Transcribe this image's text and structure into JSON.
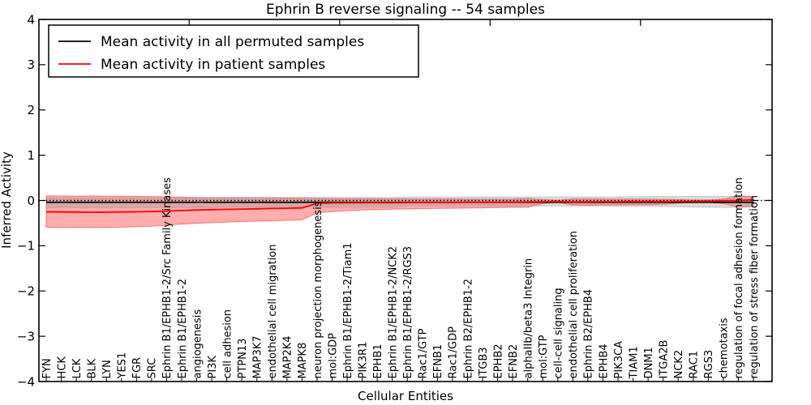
{
  "chart_data": {
    "type": "line",
    "title": "Ephrin B reverse signaling -- 54 samples",
    "xlabel": "Cellular Entities",
    "ylabel": "Inferred Activity",
    "ylim": [
      -4,
      4
    ],
    "ytick_values": [
      4,
      3,
      2,
      1,
      0,
      -1,
      -2,
      -3,
      -4
    ],
    "ytick_labels": [
      "4",
      "3",
      "2",
      "1",
      "0",
      "−1",
      "−2",
      "−3",
      "−4"
    ],
    "xtick_values": [
      10,
      20,
      30,
      40
    ],
    "grid": false,
    "legend_position": "upper left",
    "background": "#ffffff",
    "categories": [
      "FYN",
      "HCK",
      "LCK",
      "BLK",
      "LYN",
      "YES1",
      "FGR",
      "SRC",
      "Ephrin B1/EPHB1-2/Src Family Kinases",
      "Ephrin B1/EPHB1-2",
      "angiogenesis",
      "PI3K",
      "cell adhesion",
      "PTPN13",
      "MAP3K7",
      "endothelial cell migration",
      "MAP2K4",
      "MAPK8",
      "neuron projection morphogenesis",
      "mol:GDP",
      "Ephrin B1/EPHB1-2/Tiam1",
      "PIK3R1",
      "EPHB1",
      "Ephrin B1/EPHB1-2/NCK2",
      "Ephrin B1/EPHB1-2/RGS3",
      "Rac1/GTP",
      "EFNB1",
      "Rac1/GDP",
      "Ephrin B2/EPHB1-2",
      "ITGB3",
      "EPHB2",
      "EFNB2",
      "alphaIIb/beta3 Integrin",
      "mol:GTP",
      "cell-cell signaling",
      "endothelial cell proliferation",
      "Ephrin B2/EPHB4",
      "EPHB4",
      "PIK3CA",
      "TIAM1",
      "DNM1",
      "ITGA2B",
      "NCK2",
      "RAC1",
      "RGS3",
      "chemotaxis",
      "regulation of focal adhesion formation",
      "regulation of stress fiber formation"
    ],
    "series": [
      {
        "name": "Mean activity in all permuted samples",
        "color": "#000000",
        "value_constant": -0.04
      },
      {
        "name": "Mean activity in patient samples",
        "color": "#ff0000",
        "values": [
          -0.25,
          -0.255,
          -0.256,
          -0.26,
          -0.258,
          -0.254,
          -0.25,
          -0.245,
          -0.234,
          -0.222,
          -0.212,
          -0.203,
          -0.196,
          -0.19,
          -0.184,
          -0.178,
          -0.171,
          -0.164,
          -0.062,
          -0.056,
          -0.052,
          -0.05,
          -0.048,
          -0.05,
          -0.046,
          -0.043,
          -0.042,
          -0.044,
          -0.04,
          -0.037,
          -0.04,
          -0.036,
          -0.032,
          -0.028,
          -0.024,
          -0.032,
          -0.031,
          -0.027,
          -0.028,
          -0.024,
          -0.022,
          -0.024,
          -0.02,
          -0.018,
          -0.016,
          -0.008,
          0.0,
          0.015
        ]
      }
    ],
    "bands": [
      {
        "series": "patient",
        "color": "#ff0000",
        "opacity": 0.32,
        "upper": [
          0.1,
          0.1,
          0.096,
          0.1,
          0.097,
          0.093,
          0.09,
          0.088,
          0.08,
          0.073,
          0.068,
          0.065,
          0.062,
          0.06,
          0.058,
          0.056,
          0.054,
          0.052,
          0.046,
          0.043,
          0.041,
          0.04,
          0.039,
          0.038,
          0.037,
          0.036,
          0.035,
          0.034,
          0.033,
          0.032,
          0.032,
          0.034,
          0.05,
          0.02,
          0.005,
          0.035,
          0.038,
          0.035,
          0.033,
          0.031,
          0.029,
          0.026,
          0.02,
          0.01,
          0.01,
          0.03,
          0.1,
          0.095
        ],
        "lower": [
          -0.59,
          -0.6,
          -0.595,
          -0.602,
          -0.597,
          -0.59,
          -0.58,
          -0.565,
          -0.545,
          -0.52,
          -0.505,
          -0.49,
          -0.478,
          -0.466,
          -0.456,
          -0.447,
          -0.438,
          -0.43,
          -0.272,
          -0.246,
          -0.227,
          -0.212,
          -0.2,
          -0.192,
          -0.186,
          -0.181,
          -0.176,
          -0.172,
          -0.168,
          -0.163,
          -0.158,
          -0.153,
          -0.15,
          -0.07,
          -0.04,
          -0.1,
          -0.108,
          -0.104,
          -0.1,
          -0.097,
          -0.093,
          -0.086,
          -0.06,
          -0.045,
          -0.04,
          -0.07,
          -0.15,
          -0.125
        ]
      },
      {
        "series": "permuted",
        "color": "#999999",
        "opacity": 0.35,
        "upper": [
          0.06,
          0.06,
          0.06,
          0.06,
          0.06,
          0.06,
          0.06,
          0.06,
          0.06,
          0.06,
          0.06,
          0.06,
          0.07,
          0.07,
          0.07,
          0.07,
          0.07,
          0.07,
          0.07,
          0.07,
          0.07,
          0.07,
          0.07,
          0.07,
          0.08,
          0.08,
          0.08,
          0.08,
          0.08,
          0.08,
          0.08,
          0.08,
          0.08,
          0.08,
          0.08,
          0.08,
          0.08,
          0.08,
          0.08,
          0.085,
          0.085,
          0.09,
          0.09,
          0.09,
          0.095,
          0.095,
          0.09,
          0.09
        ],
        "lower": [
          -0.16,
          -0.16,
          -0.16,
          -0.16,
          -0.16,
          -0.16,
          -0.16,
          -0.16,
          -0.16,
          -0.16,
          -0.16,
          -0.16,
          -0.15,
          -0.15,
          -0.15,
          -0.15,
          -0.15,
          -0.15,
          -0.15,
          -0.15,
          -0.15,
          -0.15,
          -0.15,
          -0.15,
          -0.12,
          -0.12,
          -0.12,
          -0.12,
          -0.12,
          -0.12,
          -0.12,
          -0.12,
          -0.12,
          -0.12,
          -0.12,
          -0.12,
          -0.12,
          -0.12,
          -0.125,
          -0.13,
          -0.13,
          -0.135,
          -0.14,
          -0.145,
          -0.15,
          -0.155,
          -0.15,
          -0.145
        ]
      }
    ],
    "zero_line": {
      "value": 0,
      "style": "dotted",
      "color": "#000000"
    }
  }
}
